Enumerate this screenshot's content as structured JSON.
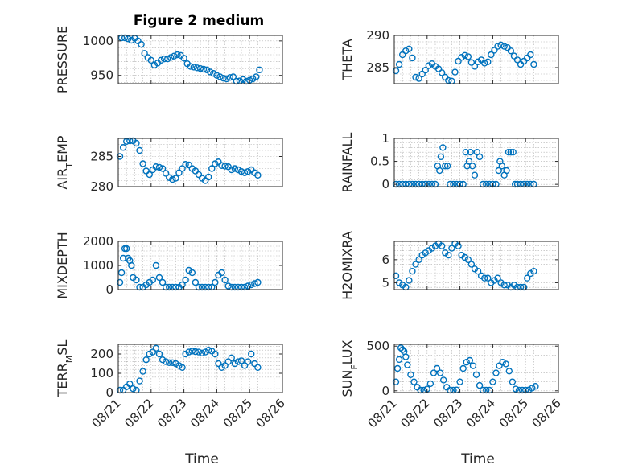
{
  "figure_title": "Figure 2 medium",
  "xlabel": "Time",
  "x_tick_labels": [
    "08/21",
    "08/22",
    "08/23",
    "08/24",
    "08/25",
    "08/26"
  ],
  "marker_color": "#0072bd",
  "chart_data": [
    {
      "type": "scatter",
      "ylabel": "PRESSURE",
      "ylim": [
        938,
        1008
      ],
      "yticks": [
        950,
        1000
      ],
      "xlim": [
        0,
        5
      ],
      "grid": true,
      "x": [
        0.1,
        0.2,
        0.3,
        0.4,
        0.5,
        0.6,
        0.7,
        0.8,
        0.9,
        1.0,
        1.1,
        1.2,
        1.3,
        1.4,
        1.5,
        1.6,
        1.7,
        1.8,
        1.9,
        2.0,
        2.1,
        2.2,
        2.3,
        2.4,
        2.5,
        2.6,
        2.7,
        2.8,
        2.9,
        3.0,
        3.1,
        3.2,
        3.3,
        3.4,
        3.5,
        3.6,
        3.7,
        3.8,
        3.9,
        4.0,
        4.1,
        4.2,
        4.3
      ],
      "y": [
        1006,
        1005,
        1003,
        1001,
        1004,
        1000,
        995,
        982,
        976,
        972,
        965,
        968,
        972,
        974,
        974,
        976,
        978,
        980,
        979,
        975,
        967,
        963,
        962,
        961,
        960,
        959,
        958,
        955,
        953,
        950,
        948,
        946,
        945,
        947,
        948,
        940,
        942,
        944,
        941,
        943,
        945,
        948,
        958
      ]
    },
    {
      "type": "scatter",
      "ylabel": "THETA",
      "ylim": [
        282.5,
        290
      ],
      "yticks": [
        285,
        290
      ],
      "xlim": [
        0,
        5
      ],
      "grid": true,
      "x": [
        0.05,
        0.15,
        0.25,
        0.35,
        0.45,
        0.55,
        0.65,
        0.75,
        0.85,
        0.95,
        1.05,
        1.15,
        1.25,
        1.35,
        1.45,
        1.55,
        1.65,
        1.75,
        1.85,
        1.95,
        2.05,
        2.15,
        2.25,
        2.35,
        2.45,
        2.55,
        2.65,
        2.75,
        2.85,
        2.95,
        3.05,
        3.15,
        3.25,
        3.35,
        3.45,
        3.55,
        3.65,
        3.75,
        3.85,
        3.95,
        4.05,
        4.15,
        4.25
      ],
      "y": [
        284.5,
        285.5,
        287.0,
        287.6,
        287.9,
        286.5,
        283.5,
        283.3,
        284.0,
        284.6,
        285.3,
        285.6,
        285.2,
        284.8,
        284.2,
        283.5,
        283.0,
        282.9,
        284.3,
        286.0,
        286.6,
        286.9,
        286.7,
        285.8,
        285.2,
        285.9,
        286.2,
        285.7,
        285.9,
        287.0,
        287.7,
        288.3,
        288.5,
        288.3,
        288.1,
        287.6,
        286.8,
        286.2,
        285.5,
        286.0,
        286.5,
        287.0,
        285.5
      ]
    },
    {
      "type": "scatter",
      "ylabel": "AIR_TEMP",
      "ylim": [
        280,
        288
      ],
      "yticks": [
        280,
        285
      ],
      "xlim": [
        0,
        5
      ],
      "grid": true,
      "x": [
        0.05,
        0.15,
        0.25,
        0.35,
        0.45,
        0.55,
        0.65,
        0.75,
        0.85,
        0.95,
        1.05,
        1.15,
        1.25,
        1.35,
        1.45,
        1.55,
        1.65,
        1.75,
        1.85,
        1.95,
        2.05,
        2.15,
        2.25,
        2.35,
        2.45,
        2.55,
        2.65,
        2.75,
        2.85,
        2.95,
        3.05,
        3.15,
        3.25,
        3.35,
        3.45,
        3.55,
        3.65,
        3.75,
        3.85,
        3.95,
        4.05,
        4.15,
        4.25
      ],
      "y": [
        285.0,
        286.5,
        287.5,
        287.6,
        287.7,
        287.2,
        286.0,
        283.8,
        282.6,
        282.0,
        282.8,
        283.3,
        283.2,
        283.0,
        282.2,
        281.5,
        281.2,
        281.4,
        282.3,
        283.0,
        283.7,
        283.6,
        283.0,
        282.6,
        282.0,
        281.4,
        281.0,
        281.6,
        283.0,
        283.8,
        284.1,
        283.5,
        283.4,
        283.3,
        282.8,
        283.0,
        282.8,
        282.5,
        282.3,
        282.5,
        282.8,
        282.3,
        281.9
      ]
    },
    {
      "type": "scatter",
      "ylabel": "RAINFALL",
      "ylim": [
        -0.05,
        1
      ],
      "yticks": [
        0,
        0.5,
        1
      ],
      "xlim": [
        0,
        5
      ],
      "grid": true,
      "x": [
        0.05,
        0.15,
        0.25,
        0.35,
        0.45,
        0.55,
        0.65,
        0.75,
        0.85,
        0.95,
        1.05,
        1.15,
        1.25,
        1.32,
        1.38,
        1.42,
        1.48,
        1.55,
        1.62,
        1.7,
        1.8,
        1.9,
        2.0,
        2.1,
        2.18,
        2.22,
        2.28,
        2.32,
        2.38,
        2.45,
        2.52,
        2.6,
        2.7,
        2.8,
        2.9,
        3.0,
        3.1,
        3.18,
        3.22,
        3.28,
        3.35,
        3.42,
        3.48,
        3.55,
        3.62,
        3.68,
        3.75,
        3.85,
        3.95,
        4.05,
        4.15,
        4.25
      ],
      "y": [
        0,
        0,
        0,
        0,
        0,
        0,
        0,
        0,
        0,
        0,
        0,
        0,
        0,
        0.4,
        0.3,
        0.6,
        0.8,
        0.4,
        0.4,
        0,
        0,
        0,
        0,
        0,
        0.7,
        0.4,
        0.5,
        0.7,
        0.4,
        0.2,
        0.7,
        0.6,
        0,
        0,
        0,
        0,
        0,
        0.3,
        0.5,
        0.4,
        0.2,
        0.3,
        0.7,
        0.7,
        0.7,
        0,
        0,
        0,
        0,
        0,
        0,
        0
      ]
    },
    {
      "type": "scatter",
      "ylabel": "MIXDEPTH",
      "ylim": [
        0,
        2000
      ],
      "yticks": [
        0,
        1000,
        2000
      ],
      "xlim": [
        0,
        5
      ],
      "grid": true,
      "x": [
        0.05,
        0.1,
        0.15,
        0.2,
        0.25,
        0.3,
        0.35,
        0.4,
        0.45,
        0.55,
        0.65,
        0.75,
        0.85,
        0.95,
        1.05,
        1.15,
        1.25,
        1.35,
        1.45,
        1.55,
        1.65,
        1.75,
        1.85,
        1.95,
        2.05,
        2.15,
        2.25,
        2.35,
        2.45,
        2.55,
        2.65,
        2.75,
        2.85,
        2.95,
        3.05,
        3.15,
        3.25,
        3.35,
        3.45,
        3.55,
        3.65,
        3.75,
        3.85,
        3.95,
        4.05,
        4.15,
        4.25
      ],
      "y": [
        300,
        700,
        1300,
        1700,
        1700,
        1300,
        1200,
        1000,
        500,
        400,
        100,
        100,
        200,
        300,
        400,
        1000,
        500,
        300,
        100,
        50,
        0,
        50,
        100,
        200,
        400,
        800,
        700,
        300,
        100,
        50,
        0,
        50,
        100,
        300,
        600,
        700,
        400,
        150,
        50,
        0,
        50,
        0,
        100,
        150,
        200,
        250,
        300
      ]
    },
    {
      "type": "scatter",
      "ylabel": "H2OMIXRA",
      "ylim": [
        4.7,
        6.8
      ],
      "yticks": [
        5,
        6
      ],
      "xlim": [
        0,
        5
      ],
      "grid": true,
      "x": [
        0.05,
        0.15,
        0.25,
        0.35,
        0.45,
        0.55,
        0.65,
        0.75,
        0.85,
        0.95,
        1.05,
        1.15,
        1.25,
        1.35,
        1.45,
        1.55,
        1.65,
        1.75,
        1.85,
        1.95,
        2.05,
        2.15,
        2.25,
        2.35,
        2.45,
        2.55,
        2.65,
        2.75,
        2.85,
        2.95,
        3.05,
        3.15,
        3.25,
        3.35,
        3.45,
        3.55,
        3.65,
        3.75,
        3.85,
        3.95,
        4.05,
        4.15,
        4.25
      ],
      "y": [
        5.3,
        5.0,
        4.9,
        4.8,
        5.1,
        5.5,
        5.8,
        6.0,
        6.2,
        6.3,
        6.4,
        6.5,
        6.6,
        6.7,
        6.6,
        6.3,
        6.2,
        6.5,
        6.7,
        6.6,
        6.2,
        6.1,
        6.0,
        5.8,
        5.6,
        5.5,
        5.3,
        5.2,
        5.2,
        5.0,
        5.1,
        5.2,
        5.0,
        4.9,
        4.9,
        4.8,
        4.9,
        4.8,
        4.8,
        4.8,
        5.2,
        5.4,
        5.5
      ]
    },
    {
      "type": "scatter",
      "ylabel": "TERR_MSL",
      "ylim": [
        0,
        250
      ],
      "yticks": [
        0,
        100,
        200
      ],
      "xlim": [
        0,
        5
      ],
      "grid": true,
      "x": [
        0.05,
        0.15,
        0.25,
        0.35,
        0.45,
        0.55,
        0.65,
        0.75,
        0.85,
        0.95,
        1.05,
        1.15,
        1.25,
        1.35,
        1.45,
        1.55,
        1.65,
        1.75,
        1.85,
        1.95,
        2.05,
        2.15,
        2.25,
        2.35,
        2.45,
        2.55,
        2.65,
        2.75,
        2.85,
        2.95,
        3.05,
        3.15,
        3.25,
        3.35,
        3.45,
        3.55,
        3.65,
        3.75,
        3.85,
        3.95,
        4.05,
        4.15,
        4.25
      ],
      "y": [
        5,
        10,
        30,
        45,
        20,
        10,
        60,
        110,
        170,
        200,
        210,
        230,
        200,
        170,
        160,
        155,
        155,
        150,
        140,
        130,
        200,
        210,
        215,
        212,
        210,
        205,
        210,
        220,
        215,
        200,
        150,
        130,
        140,
        160,
        180,
        150,
        160,
        165,
        140,
        160,
        200,
        150,
        130
      ]
    },
    {
      "type": "scatter",
      "ylabel": "SUN_FLUX",
      "ylim": [
        -20,
        520
      ],
      "yticks": [
        0,
        500
      ],
      "xlim": [
        0,
        5
      ],
      "grid": true,
      "x": [
        0.05,
        0.1,
        0.15,
        0.2,
        0.25,
        0.3,
        0.35,
        0.4,
        0.5,
        0.6,
        0.7,
        0.8,
        0.9,
        1.0,
        1.1,
        1.2,
        1.3,
        1.4,
        1.5,
        1.6,
        1.7,
        1.8,
        1.9,
        2.0,
        2.1,
        2.2,
        2.3,
        2.4,
        2.5,
        2.6,
        2.7,
        2.8,
        2.9,
        3.0,
        3.1,
        3.2,
        3.3,
        3.4,
        3.5,
        3.6,
        3.7,
        3.8,
        3.9,
        4.0,
        4.1,
        4.2,
        4.3
      ],
      "y": [
        100,
        250,
        350,
        480,
        460,
        440,
        380,
        290,
        180,
        100,
        40,
        5,
        0,
        20,
        80,
        200,
        250,
        200,
        120,
        40,
        0,
        0,
        10,
        100,
        250,
        320,
        340,
        280,
        180,
        60,
        5,
        0,
        0,
        100,
        200,
        280,
        320,
        300,
        220,
        100,
        20,
        0,
        0,
        0,
        10,
        30,
        50
      ]
    }
  ]
}
